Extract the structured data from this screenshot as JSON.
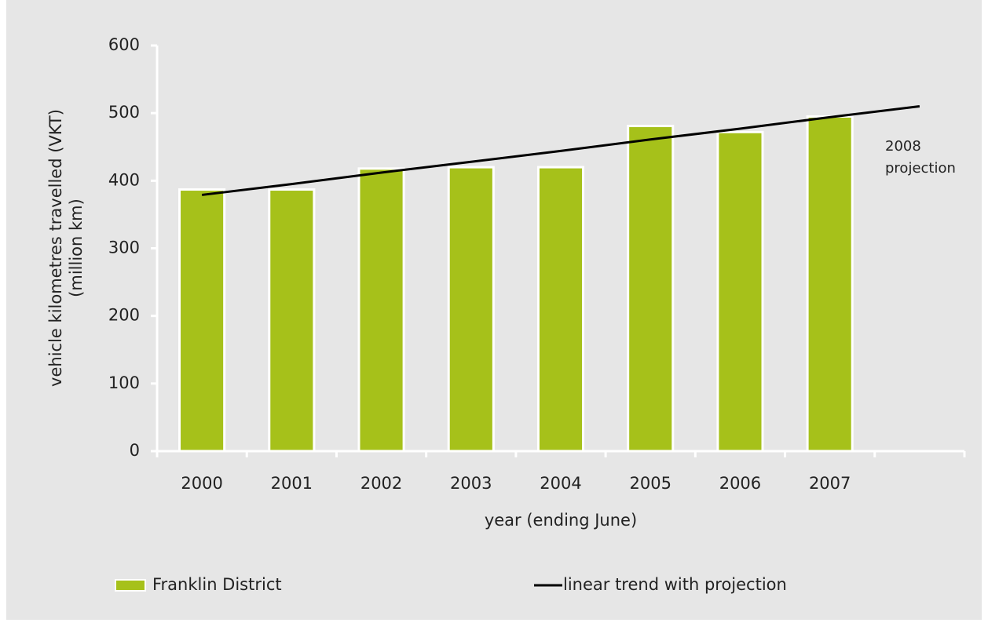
{
  "chart_data": {
    "type": "bar",
    "y_label": [
      "vehicle kilometres travelled (VKT)",
      "(million km)"
    ],
    "x_label": "year (ending June)",
    "categories": [
      "2000",
      "2001",
      "2002",
      "2003",
      "2004",
      "2005",
      "2006",
      "2007",
      null
    ],
    "series": [
      {
        "name": "Franklin District",
        "type": "bar",
        "color": "#a6c11a",
        "values": [
          387,
          387,
          418,
          420,
          420,
          481,
          472,
          495,
          null
        ]
      },
      {
        "name": "linear trend with projection",
        "type": "line",
        "color": "#000000",
        "values": [
          379,
          395,
          412,
          428,
          444,
          461,
          477,
          494,
          510
        ]
      }
    ],
    "annotation": [
      "2008",
      "projection"
    ],
    "ylim": [
      0,
      600
    ],
    "yticks": [
      0,
      100,
      200,
      300,
      400,
      500,
      600
    ],
    "legend": "bottom"
  }
}
